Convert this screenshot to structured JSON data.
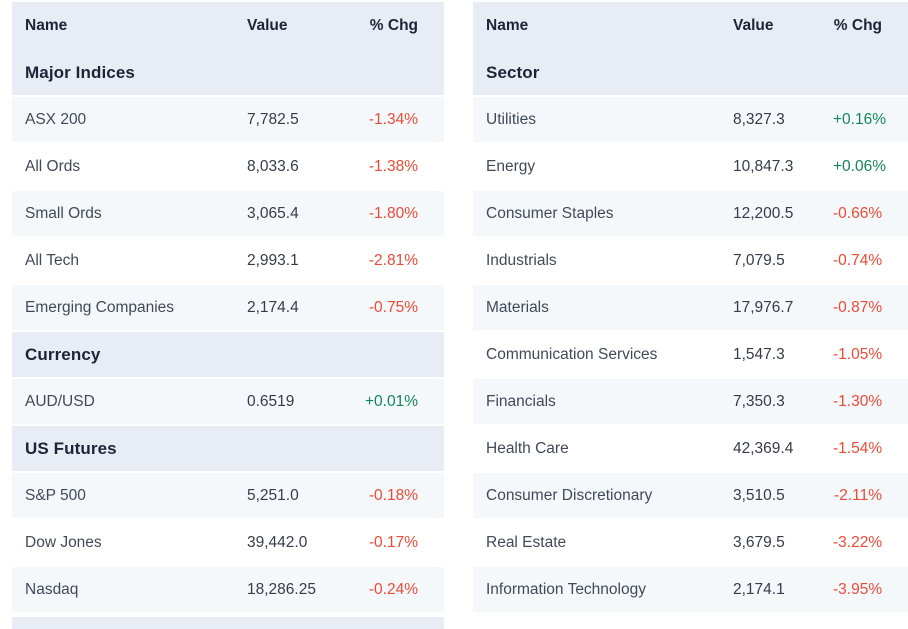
{
  "colors": {
    "header_bg": "#e8edf5",
    "row_alt_bg": "#f5f8fb",
    "row_bg": "#ffffff",
    "positive": "#148659",
    "negative": "#ee4a35",
    "heading_text": "#1c2536",
    "name_text": "#414a58",
    "value_text": "#353c49"
  },
  "columns": {
    "name": "Name",
    "value": "Value",
    "chg": "% Chg"
  },
  "tables": [
    {
      "id": "indices",
      "sections": [
        {
          "title": "Major Indices",
          "rows": [
            {
              "name": "ASX 200",
              "value": "7,782.5",
              "chg": "-1.34%"
            },
            {
              "name": "All Ords",
              "value": "8,033.6",
              "chg": "-1.38%"
            },
            {
              "name": "Small Ords",
              "value": "3,065.4",
              "chg": "-1.80%"
            },
            {
              "name": "All Tech",
              "value": "2,993.1",
              "chg": "-2.81%"
            },
            {
              "name": "Emerging Companies",
              "value": "2,174.4",
              "chg": "-0.75%"
            }
          ]
        },
        {
          "title": "Currency",
          "rows": [
            {
              "name": "AUD/USD",
              "value": "0.6519",
              "chg": "+0.01%"
            }
          ]
        },
        {
          "title": "US Futures",
          "rows": [
            {
              "name": "S&P 500",
              "value": "5,251.0",
              "chg": "-0.18%"
            },
            {
              "name": "Dow Jones",
              "value": "39,442.0",
              "chg": "-0.17%"
            },
            {
              "name": "Nasdaq",
              "value": "18,286.25",
              "chg": "-0.24%"
            }
          ]
        }
      ]
    },
    {
      "id": "sectors",
      "sections": [
        {
          "title": "Sector",
          "rows": [
            {
              "name": "Utilities",
              "value": "8,327.3",
              "chg": "+0.16%"
            },
            {
              "name": "Energy",
              "value": "10,847.3",
              "chg": "+0.06%"
            },
            {
              "name": "Consumer Staples",
              "value": "12,200.5",
              "chg": "-0.66%"
            },
            {
              "name": "Industrials",
              "value": "7,079.5",
              "chg": "-0.74%"
            },
            {
              "name": "Materials",
              "value": "17,976.7",
              "chg": "-0.87%"
            },
            {
              "name": "Communication Services",
              "value": "1,547.3",
              "chg": "-1.05%"
            },
            {
              "name": "Financials",
              "value": "7,350.3",
              "chg": "-1.30%"
            },
            {
              "name": "Health Care",
              "value": "42,369.4",
              "chg": "-1.54%"
            },
            {
              "name": "Consumer Discretionary",
              "value": "3,510.5",
              "chg": "-2.11%"
            },
            {
              "name": "Real Estate",
              "value": "3,679.5",
              "chg": "-3.22%"
            },
            {
              "name": "Information Technology",
              "value": "2,174.1",
              "chg": "-3.95%"
            }
          ]
        }
      ]
    }
  ]
}
